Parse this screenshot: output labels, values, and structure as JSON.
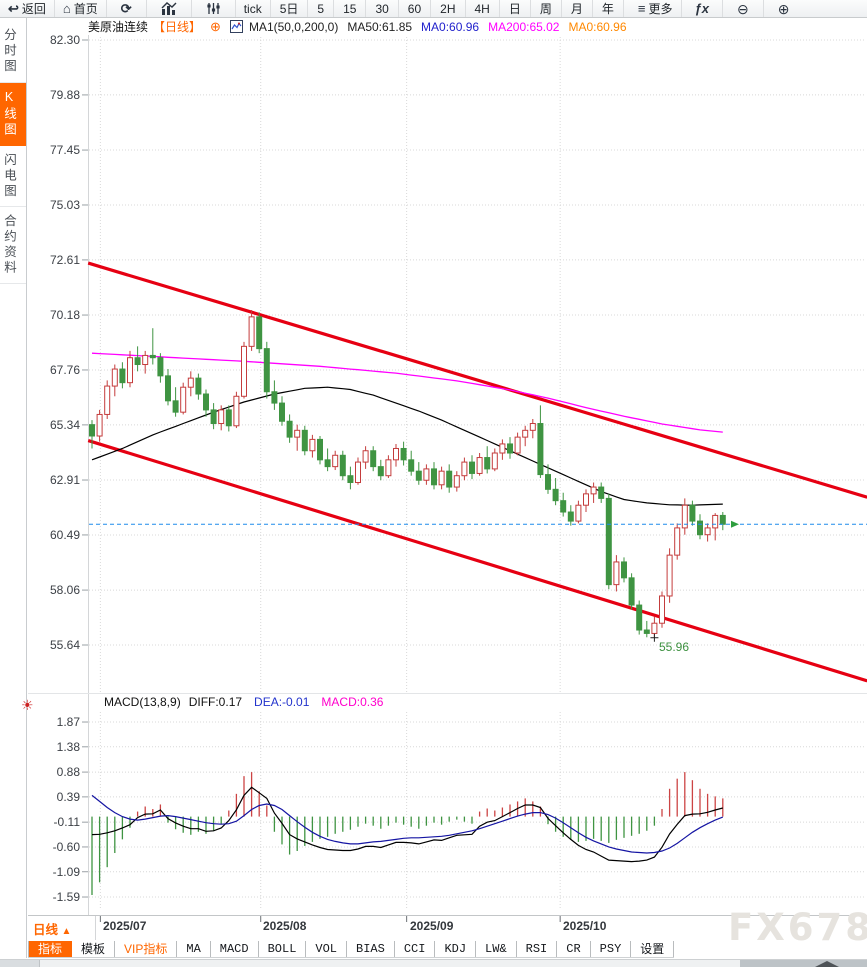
{
  "top_toolbar": {
    "back": "返回",
    "home": "首页",
    "tick": "tick",
    "periods": [
      "5日",
      "5",
      "15",
      "30",
      "60",
      "2H",
      "4H",
      "日",
      "周",
      "月",
      "年"
    ],
    "more": "更多",
    "fx": "ƒx"
  },
  "icons": {
    "back": "↩",
    "home": "⌂",
    "refresh": "⟳",
    "more": "≡",
    "zoom_out": "⊖",
    "zoom_in": "⊕",
    "add_circle": "⊕",
    "indicator_settings": "☀",
    "period_arrow": "▲"
  },
  "title_bar": {
    "symbol": "美原油连续",
    "period_tag": "【日线】",
    "ma_formula": "MA1(50,0,200,0)",
    "ma50": "MA50:61.85",
    "ma0_blue": "MA0:60.96",
    "ma200": "MA200:65.02",
    "ma0_orange": "MA0:60.96"
  },
  "sidebar": {
    "items": [
      "分时图",
      "K线图",
      "闪电图",
      "合约资料"
    ],
    "active_index": 1
  },
  "macd_header": {
    "formula": "MACD(13,8,9)",
    "diff": "DIFF:0.17",
    "dea": "DEA:-0.01",
    "macd": "MACD:0.36"
  },
  "xaxis_period_button": "日线",
  "bottom_tabs": [
    "指标",
    "模板",
    "VIP指标",
    "MA",
    "MACD",
    "BOLL",
    "VOL",
    "BIAS",
    "CCI",
    "KDJ",
    "LW&",
    "RSI",
    "CR",
    "PSY",
    "设置"
  ],
  "watermark": "FX678",
  "chart_data": {
    "type": "candlestick",
    "title": "美原油连续 日线 (US Crude Oil Continuous, Daily)",
    "legend": [
      "MA50 (black)",
      "MA200 (magenta)"
    ],
    "y_ticks": [
      "82.30",
      "79.88",
      "77.45",
      "75.03",
      "72.61",
      "70.18",
      "67.76",
      "65.34",
      "62.91",
      "60.49",
      "58.06",
      "55.64"
    ],
    "x_ticks": [
      {
        "label": "2025/07",
        "i": 1.1
      },
      {
        "label": "2025/08",
        "i": 22.2
      },
      {
        "label": "2025/09",
        "i": 41.4
      },
      {
        "label": "2025/10",
        "i": 61.6
      }
    ],
    "last_price": 60.96,
    "low_label": "55.96",
    "low_index": 74,
    "low_price": 55.96,
    "candles": [
      [
        65.35,
        65.55,
        64.3,
        64.85
      ],
      [
        64.85,
        66.0,
        64.6,
        65.8
      ],
      [
        65.8,
        67.3,
        65.6,
        67.05
      ],
      [
        67.05,
        68.0,
        66.6,
        67.8
      ],
      [
        67.8,
        68.1,
        66.95,
        67.2
      ],
      [
        67.2,
        68.6,
        67.0,
        68.3
      ],
      [
        68.3,
        68.8,
        67.7,
        68.0
      ],
      [
        68.0,
        68.6,
        67.6,
        68.4
      ],
      [
        68.4,
        69.6,
        68.0,
        68.3
      ],
      [
        68.3,
        68.5,
        67.2,
        67.5
      ],
      [
        67.5,
        67.8,
        66.2,
        66.4
      ],
      [
        66.4,
        67.0,
        65.7,
        65.9
      ],
      [
        65.9,
        67.2,
        65.8,
        67.0
      ],
      [
        67.0,
        67.7,
        66.6,
        67.4
      ],
      [
        67.4,
        67.6,
        66.45,
        66.7
      ],
      [
        66.7,
        66.9,
        65.7,
        66.0
      ],
      [
        66.0,
        66.3,
        65.15,
        65.4
      ],
      [
        65.4,
        66.2,
        65.1,
        66.0
      ],
      [
        66.0,
        66.2,
        65.05,
        65.3
      ],
      [
        65.3,
        66.8,
        65.2,
        66.6
      ],
      [
        66.6,
        69.0,
        66.5,
        68.8
      ],
      [
        68.8,
        70.4,
        68.6,
        70.1
      ],
      [
        70.1,
        70.3,
        68.5,
        68.7
      ],
      [
        68.7,
        69.0,
        66.5,
        66.8
      ],
      [
        66.8,
        67.3,
        66.0,
        66.3
      ],
      [
        66.3,
        66.6,
        65.3,
        65.5
      ],
      [
        65.5,
        65.8,
        64.55,
        64.8
      ],
      [
        64.8,
        65.35,
        64.2,
        65.1
      ],
      [
        65.1,
        65.3,
        64.0,
        64.2
      ],
      [
        64.2,
        64.9,
        63.9,
        64.7
      ],
      [
        64.7,
        64.85,
        63.6,
        63.8
      ],
      [
        63.8,
        64.3,
        63.3,
        63.5
      ],
      [
        63.5,
        64.2,
        63.35,
        64.0
      ],
      [
        64.0,
        64.2,
        62.9,
        63.1
      ],
      [
        63.1,
        63.5,
        62.5,
        62.8
      ],
      [
        62.8,
        63.9,
        62.7,
        63.7
      ],
      [
        63.7,
        64.4,
        63.4,
        64.2
      ],
      [
        64.2,
        64.4,
        63.3,
        63.5
      ],
      [
        63.5,
        63.8,
        62.9,
        63.1
      ],
      [
        63.1,
        64.0,
        63.0,
        63.8
      ],
      [
        63.8,
        64.5,
        63.5,
        64.3
      ],
      [
        64.3,
        64.6,
        63.55,
        63.8
      ],
      [
        63.8,
        64.2,
        63.1,
        63.3
      ],
      [
        63.3,
        63.7,
        62.7,
        62.9
      ],
      [
        62.9,
        63.6,
        62.7,
        63.4
      ],
      [
        63.4,
        63.7,
        62.5,
        62.7
      ],
      [
        62.7,
        63.5,
        62.5,
        63.3
      ],
      [
        63.3,
        63.6,
        62.35,
        62.6
      ],
      [
        62.6,
        63.3,
        62.4,
        63.1
      ],
      [
        63.1,
        63.9,
        62.9,
        63.7
      ],
      [
        63.7,
        64.0,
        62.95,
        63.2
      ],
      [
        63.2,
        64.1,
        63.1,
        63.9
      ],
      [
        63.9,
        64.4,
        63.2,
        63.4
      ],
      [
        63.4,
        64.3,
        63.3,
        64.1
      ],
      [
        64.1,
        64.7,
        63.8,
        64.5
      ],
      [
        64.5,
        64.8,
        63.85,
        64.1
      ],
      [
        64.1,
        65.0,
        64.0,
        64.8
      ],
      [
        64.8,
        65.3,
        64.4,
        65.1
      ],
      [
        65.1,
        65.6,
        64.75,
        65.4
      ],
      [
        65.4,
        66.2,
        63.0,
        63.15
      ],
      [
        63.15,
        63.6,
        62.3,
        62.5
      ],
      [
        62.5,
        63.0,
        61.8,
        62.0
      ],
      [
        62.0,
        62.35,
        61.3,
        61.5
      ],
      [
        61.5,
        61.8,
        60.9,
        61.1
      ],
      [
        61.1,
        62.0,
        61.0,
        61.8
      ],
      [
        61.8,
        62.5,
        61.5,
        62.3
      ],
      [
        62.3,
        62.8,
        61.9,
        62.6
      ],
      [
        62.6,
        62.8,
        61.9,
        62.1
      ],
      [
        62.1,
        62.3,
        58.1,
        58.3
      ],
      [
        58.3,
        59.6,
        58.0,
        59.3
      ],
      [
        59.3,
        59.5,
        58.4,
        58.6
      ],
      [
        58.6,
        58.8,
        57.2,
        57.4
      ],
      [
        57.4,
        57.6,
        56.1,
        56.3
      ],
      [
        56.3,
        56.7,
        55.98,
        56.15
      ],
      [
        56.15,
        56.9,
        55.96,
        56.6
      ],
      [
        56.6,
        58.0,
        56.4,
        57.8
      ],
      [
        57.8,
        59.9,
        57.5,
        59.6
      ],
      [
        59.6,
        61.0,
        59.4,
        60.8
      ],
      [
        60.8,
        62.1,
        60.5,
        61.8
      ],
      [
        61.8,
        62.0,
        60.9,
        61.1
      ],
      [
        61.1,
        61.4,
        60.3,
        60.5
      ],
      [
        60.5,
        61.0,
        60.2,
        60.8
      ],
      [
        60.8,
        61.45,
        60.25,
        61.35
      ],
      [
        61.35,
        61.5,
        60.7,
        60.96
      ]
    ],
    "ma50_keypoints": [
      [
        0,
        63.8
      ],
      [
        4,
        64.3
      ],
      [
        8,
        64.9
      ],
      [
        12,
        65.4
      ],
      [
        16,
        65.9
      ],
      [
        20,
        66.35
      ],
      [
        24,
        66.7
      ],
      [
        28,
        66.95
      ],
      [
        31,
        67.0
      ],
      [
        34,
        66.9
      ],
      [
        37,
        66.65
      ],
      [
        40,
        66.3
      ],
      [
        43,
        65.95
      ],
      [
        46,
        65.55
      ],
      [
        49,
        65.1
      ],
      [
        52,
        64.65
      ],
      [
        55,
        64.2
      ],
      [
        58,
        63.75
      ],
      [
        61,
        63.3
      ],
      [
        64,
        62.85
      ],
      [
        67,
        62.4
      ],
      [
        70,
        62.05
      ],
      [
        73,
        61.9
      ],
      [
        76,
        61.82
      ],
      [
        79,
        61.8
      ],
      [
        83,
        61.85
      ]
    ],
    "ma200_keypoints": [
      [
        0,
        68.5
      ],
      [
        10,
        68.32
      ],
      [
        20,
        68.14
      ],
      [
        30,
        67.92
      ],
      [
        40,
        67.62
      ],
      [
        48,
        67.28
      ],
      [
        55,
        66.88
      ],
      [
        60,
        66.52
      ],
      [
        65,
        66.1
      ],
      [
        70,
        65.72
      ],
      [
        75,
        65.38
      ],
      [
        80,
        65.12
      ],
      [
        83,
        65.02
      ]
    ],
    "channel": {
      "upper": [
        [
          -0.5,
          72.47
        ],
        [
          102.0,
          62.15
        ]
      ],
      "lower": [
        [
          -0.5,
          64.65
        ],
        [
          102.0,
          54.06
        ]
      ]
    },
    "macd": {
      "y_ticks": [
        "1.87",
        "1.38",
        "0.88",
        "0.39",
        "-0.11",
        "-0.60",
        "-1.09",
        "-1.59"
      ],
      "hist": [
        -1.55,
        -1.3,
        -1.0,
        -0.72,
        -0.45,
        -0.22,
        0.1,
        0.2,
        0.15,
        0.24,
        -0.12,
        -0.25,
        -0.32,
        -0.36,
        -0.3,
        -0.34,
        -0.28,
        -0.15,
        0.12,
        0.45,
        0.8,
        0.88,
        0.5,
        0.22,
        -0.3,
        -0.55,
        -0.75,
        -0.68,
        -0.58,
        -0.5,
        -0.44,
        -0.4,
        -0.34,
        -0.3,
        -0.26,
        -0.2,
        -0.14,
        -0.18,
        -0.24,
        -0.18,
        -0.12,
        -0.16,
        -0.2,
        -0.24,
        -0.18,
        -0.12,
        -0.16,
        -0.1,
        -0.06,
        -0.1,
        -0.14,
        0.1,
        0.16,
        0.12,
        0.18,
        0.24,
        0.3,
        0.36,
        0.3,
        0.2,
        -0.15,
        -0.3,
        -0.4,
        -0.46,
        -0.5,
        -0.48,
        -0.44,
        -0.48,
        -0.52,
        -0.46,
        -0.42,
        -0.38,
        -0.34,
        -0.28,
        -0.18,
        0.15,
        0.55,
        0.75,
        0.88,
        0.72,
        0.55,
        0.45,
        0.4,
        0.36
      ],
      "dea": [
        0.42,
        0.3,
        0.18,
        0.08,
        0.0,
        -0.05,
        -0.07,
        -0.05,
        -0.02,
        0.01,
        0.02,
        0.0,
        -0.03,
        -0.06,
        -0.09,
        -0.12,
        -0.14,
        -0.15,
        -0.14,
        -0.09,
        0.02,
        0.14,
        0.22,
        0.25,
        0.22,
        0.14,
        0.02,
        -0.1,
        -0.21,
        -0.31,
        -0.39,
        -0.45,
        -0.49,
        -0.52,
        -0.54,
        -0.54,
        -0.52,
        -0.5,
        -0.49,
        -0.47,
        -0.45,
        -0.43,
        -0.42,
        -0.42,
        -0.41,
        -0.4,
        -0.39,
        -0.37,
        -0.34,
        -0.31,
        -0.28,
        -0.24,
        -0.19,
        -0.14,
        -0.09,
        -0.04,
        0.01,
        0.05,
        0.08,
        0.08,
        0.04,
        -0.03,
        -0.12,
        -0.22,
        -0.32,
        -0.41,
        -0.48,
        -0.54,
        -0.6,
        -0.64,
        -0.67,
        -0.7,
        -0.71,
        -0.72,
        -0.71,
        -0.68,
        -0.62,
        -0.53,
        -0.42,
        -0.31,
        -0.22,
        -0.14,
        -0.07,
        -0.01
      ]
    },
    "colors": {
      "up": "#c43c3c",
      "down": "#3f9442",
      "ma50": "#000000",
      "ma200": "#ff00ff",
      "channel": "#e60012",
      "last_price_line": "#1f8ceb",
      "arrow_green": "#2e9e3e",
      "diff_line": "#000000",
      "dea_line": "#1515a3",
      "hist_pos": "#cc4444",
      "hist_neg": "#3f9442",
      "grid": "#d8d8d8",
      "accent_orange": "#ff6600"
    }
  }
}
